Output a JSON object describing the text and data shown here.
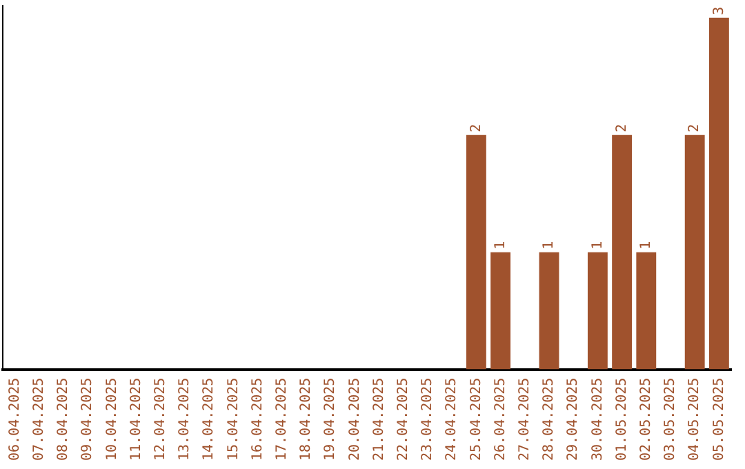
{
  "chart_data": {
    "type": "bar",
    "categories": [
      "06.04.2025",
      "07.04.2025",
      "08.04.2025",
      "09.04.2025",
      "10.04.2025",
      "11.04.2025",
      "12.04.2025",
      "13.04.2025",
      "14.04.2025",
      "15.04.2025",
      "16.04.2025",
      "17.04.2025",
      "18.04.2025",
      "19.04.2025",
      "20.04.2025",
      "21.04.2025",
      "22.04.2025",
      "23.04.2025",
      "24.04.2025",
      "25.04.2025",
      "26.04.2025",
      "27.04.2025",
      "28.04.2025",
      "29.04.2025",
      "30.04.2025",
      "01.05.2025",
      "02.05.2025",
      "03.05.2025",
      "04.05.2025",
      "05.05.2025"
    ],
    "values": [
      null,
      null,
      null,
      null,
      null,
      null,
      null,
      null,
      null,
      null,
      null,
      null,
      null,
      null,
      null,
      null,
      null,
      null,
      null,
      2,
      1,
      null,
      1,
      null,
      1,
      2,
      1,
      null,
      2,
      3
    ],
    "value_labels": [
      null,
      null,
      null,
      null,
      null,
      null,
      null,
      null,
      null,
      null,
      null,
      null,
      null,
      null,
      null,
      null,
      null,
      null,
      null,
      "2",
      "1",
      null,
      "1",
      null,
      "1",
      "2",
      "1",
      null,
      "2",
      "3"
    ],
    "color": "#a0522d",
    "grid": false,
    "legend": false,
    "tick_labels": "x"
  }
}
